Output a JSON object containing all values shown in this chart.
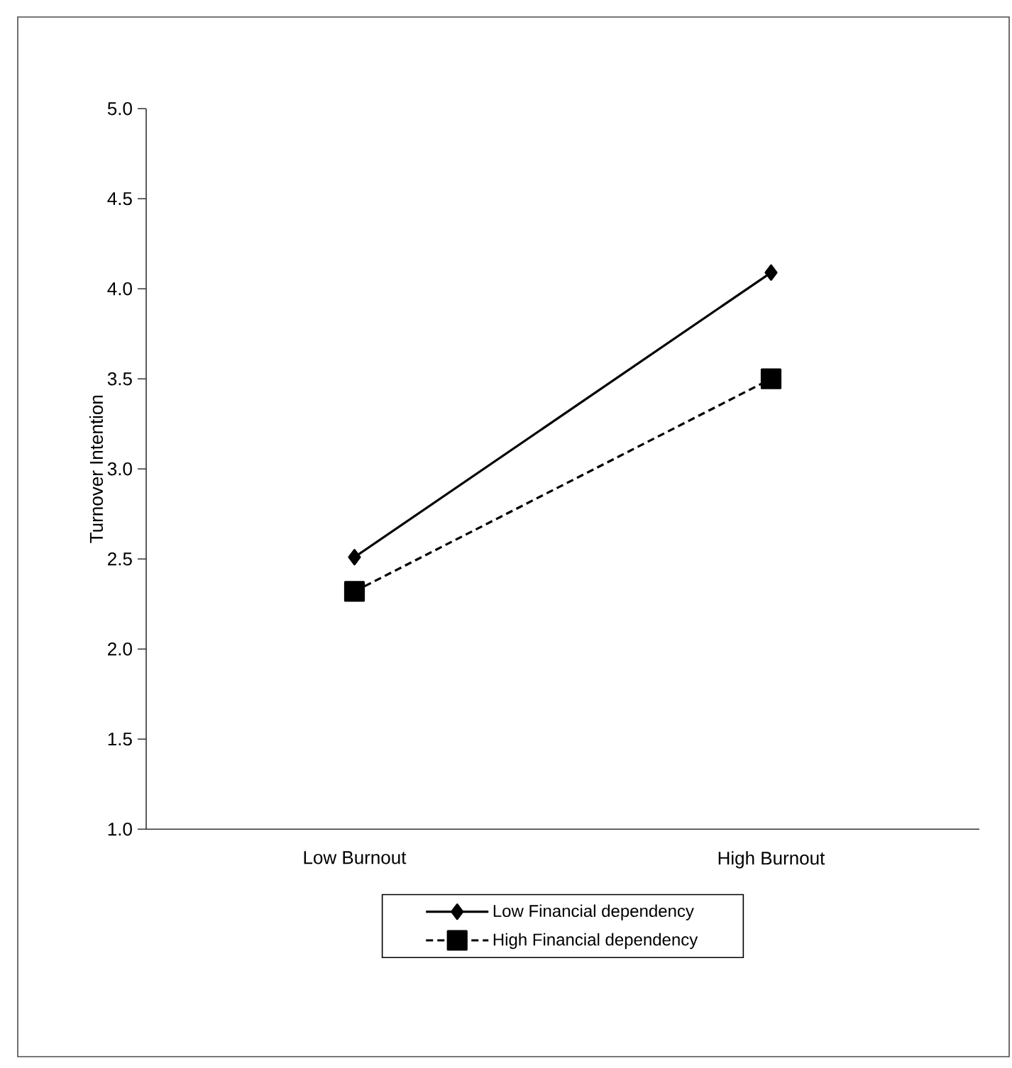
{
  "chart_data": {
    "type": "line",
    "ylabel": "Turnover Intention",
    "categories": [
      "Low Burnout",
      "High Burnout"
    ],
    "series": [
      {
        "name": "Low Financial dependency",
        "color": "#000000",
        "values": [
          2.51,
          4.09
        ],
        "marker": "diamond",
        "line_style": "solid"
      },
      {
        "name": "High Financial dependency",
        "color": "#000000",
        "values": [
          2.32,
          3.5
        ],
        "marker": "square",
        "line_style": "dashed"
      }
    ],
    "ylim": [
      1,
      5
    ],
    "yticks": [
      {
        "value": 1,
        "label": "1.0"
      },
      {
        "value": 1.5,
        "label": "1.5"
      },
      {
        "value": 2,
        "label": "2.0"
      },
      {
        "value": 2.5,
        "label": "2.5"
      },
      {
        "value": 3,
        "label": "3.0"
      },
      {
        "value": 3.5,
        "label": "3.5"
      },
      {
        "value": 4,
        "label": "4.0"
      },
      {
        "value": 4.5,
        "label": "4.5"
      },
      {
        "value": 5,
        "label": "5.0"
      }
    ],
    "legend": "bottom",
    "grid": false
  }
}
